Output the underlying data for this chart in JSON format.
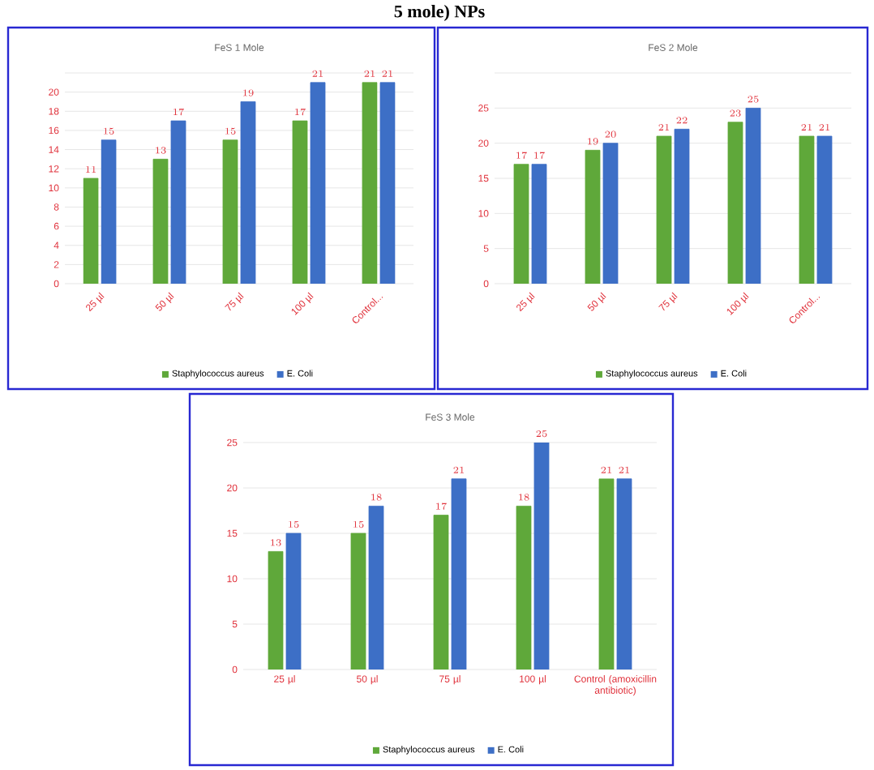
{
  "chart_data": [
    {
      "type": "bar",
      "title": "FeS 1 Mole",
      "annotations": [
        "5 mole) NPs"
      ],
      "categories": [
        "25 µl",
        "50 µl",
        "75 µl",
        "100 µl",
        "Control..."
      ],
      "series": [
        {
          "name": "Staphylococcus aureus",
          "color": "#5fa83a",
          "values": [
            11,
            13,
            15,
            17,
            21
          ]
        },
        {
          "name": "E. Coli",
          "color": "#3d6fc6",
          "values": [
            15,
            17,
            19,
            21,
            21
          ]
        }
      ],
      "ylim": [
        0,
        22
      ],
      "yticks": [
        0,
        2,
        4,
        6,
        8,
        10,
        12,
        14,
        16,
        18,
        20,
        {
          "value": 22,
          "label": null
        }
      ],
      "grid": "y",
      "legend": "bottom",
      "data_labels": true
    },
    {
      "type": "bar",
      "title": "FeS 2 Mole",
      "categories": [
        "25 µl",
        "50 µl",
        "75 µl",
        "100 µl",
        "Control..."
      ],
      "series": [
        {
          "name": "Staphylococcus aureus",
          "color": "#5fa83a",
          "values": [
            17,
            19,
            21,
            23,
            21
          ]
        },
        {
          "name": "E. Coli",
          "color": "#3d6fc6",
          "values": [
            17,
            20,
            22,
            25,
            21
          ]
        }
      ],
      "ylim": [
        0,
        30
      ],
      "yticks": [
        0,
        5,
        10,
        15,
        20,
        25,
        {
          "value": 30,
          "label": null
        }
      ],
      "grid": "y",
      "legend": "bottom",
      "data_labels": true
    },
    {
      "type": "bar",
      "title": "FeS 3 Mole",
      "categories": [
        "25 µl",
        "50 µl",
        "75 µl",
        "100 µl",
        "Control (amoxicillin antibiotic)"
      ],
      "series": [
        {
          "name": "Staphylococcus aureus",
          "color": "#5fa83a",
          "values": [
            13,
            15,
            17,
            18,
            21
          ]
        },
        {
          "name": "E. Coli",
          "color": "#3d6fc6",
          "values": [
            15,
            18,
            21,
            25,
            21
          ]
        }
      ],
      "ylim": [
        0,
        25
      ],
      "yticks": [
        0,
        5,
        10,
        15,
        20,
        25
      ],
      "grid": "y",
      "legend": "bottom",
      "data_labels": true
    }
  ]
}
